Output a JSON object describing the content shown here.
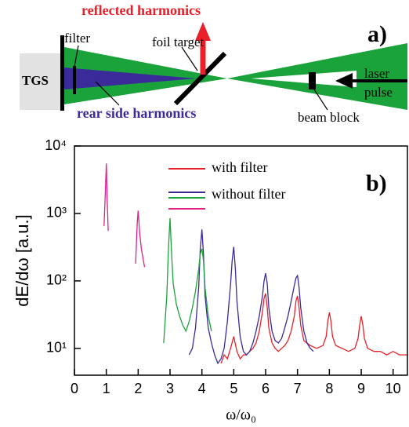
{
  "diagram": {
    "label": "a)",
    "reflected": "reflected harmonics",
    "filter": "filter",
    "foil": "foil target",
    "tgs": "TGS",
    "laser": "laser",
    "pulse": "pulse",
    "rear": "rear side harmonics",
    "block": "beam block"
  },
  "chart_data": {
    "type": "line",
    "label": "b)",
    "xlabel": "ω/ω₀",
    "ylabel": "dE/dω [a.u.]",
    "log_y": true,
    "xlim": [
      0,
      10.45
    ],
    "ylim": [
      4,
      10000
    ],
    "xticks": [
      0,
      1,
      2,
      3,
      4,
      5,
      6,
      7,
      8,
      9,
      10
    ],
    "yticks": [
      {
        "value": 10,
        "label": "10¹"
      },
      {
        "value": 100,
        "label": "10²"
      },
      {
        "value": 1000,
        "label": "10³"
      },
      {
        "value": 10000,
        "label": "10⁴"
      }
    ],
    "series": [
      {
        "name": "with filter",
        "color": "#e8202a",
        "x": [
          4.6,
          4.7,
          4.8,
          4.9,
          5.0,
          5.1,
          5.2,
          5.3,
          5.4,
          5.5,
          5.6,
          5.7,
          5.8,
          5.9,
          5.95,
          6.0,
          6.05,
          6.1,
          6.2,
          6.3,
          6.4,
          6.5,
          6.6,
          6.7,
          6.8,
          6.9,
          6.95,
          7.0,
          7.05,
          7.1,
          7.2,
          7.4,
          7.6,
          7.8,
          7.9,
          7.95,
          8.0,
          8.05,
          8.1,
          8.2,
          8.4,
          8.6,
          8.8,
          8.9,
          8.95,
          9.0,
          9.05,
          9.1,
          9.2,
          9.4,
          9.6,
          9.8,
          10.0,
          10.2,
          10.45
        ],
        "values": [
          6,
          8,
          7,
          10,
          15,
          9,
          7,
          8,
          8,
          9,
          10,
          12,
          18,
          35,
          55,
          65,
          40,
          20,
          12,
          10,
          9,
          10,
          11,
          13,
          18,
          30,
          50,
          60,
          40,
          22,
          13,
          11,
          10,
          11,
          15,
          25,
          34,
          25,
          15,
          11,
          10,
          9,
          10,
          14,
          22,
          30,
          22,
          14,
          10,
          9,
          9,
          8,
          9,
          8,
          8
        ]
      },
      {
        "name": "without filter",
        "color": "#3a2a9a",
        "x": [
          3.6,
          3.7,
          3.8,
          3.9,
          3.95,
          4.0,
          4.05,
          4.1,
          4.2,
          4.3,
          4.4,
          4.5,
          4.6,
          4.7,
          4.8,
          4.9,
          4.95,
          5.0,
          5.05,
          5.1,
          5.2,
          5.3,
          5.4,
          5.5,
          5.6,
          5.7,
          5.8,
          5.9,
          5.95,
          6.0,
          6.05,
          6.1,
          6.2,
          6.3,
          6.4,
          6.5,
          6.6,
          6.7,
          6.8,
          6.9,
          6.95,
          7.0,
          7.05,
          7.1,
          7.2,
          7.3,
          7.4,
          7.5
        ],
        "values": [
          8,
          10,
          20,
          80,
          300,
          580,
          250,
          60,
          20,
          12,
          8,
          6,
          7,
          10,
          25,
          90,
          200,
          320,
          150,
          50,
          15,
          9,
          8,
          9,
          12,
          18,
          30,
          60,
          100,
          130,
          90,
          40,
          18,
          13,
          12,
          14,
          20,
          30,
          50,
          85,
          110,
          120,
          80,
          40,
          18,
          12,
          10,
          9
        ]
      },
      {
        "color": "#1aa33a",
        "x": [
          2.8,
          2.9,
          2.95,
          3.0,
          3.05,
          3.1,
          3.2,
          3.3,
          3.4,
          3.5,
          3.6,
          3.7,
          3.8,
          3.9,
          3.95,
          4.0,
          4.05,
          4.1,
          4.2,
          4.3
        ],
        "values": [
          12,
          60,
          300,
          850,
          250,
          90,
          45,
          30,
          22,
          18,
          25,
          40,
          70,
          150,
          250,
          300,
          200,
          80,
          30,
          18
        ]
      },
      {
        "color": "#e0208a",
        "x": [
          0.93,
          0.97,
          1.0,
          1.03,
          1.06,
          1.5,
          1.92,
          1.97,
          2.0,
          2.05,
          2.1,
          2.2
        ],
        "values": [
          650,
          2000,
          5500,
          1500,
          550,
          null,
          180,
          700,
          1100,
          500,
          300,
          160
        ]
      }
    ]
  }
}
